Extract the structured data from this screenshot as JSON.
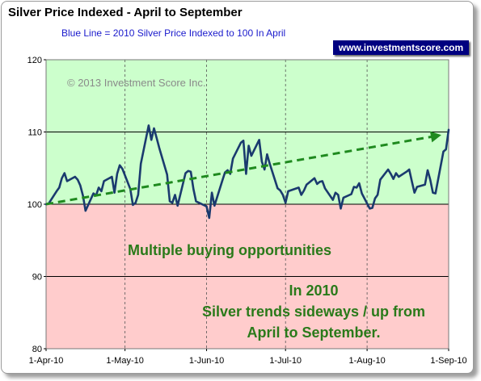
{
  "title": "Silver Price Indexed - April to September",
  "subtitle": "Blue Line =  2010 Silver Price Indexed to 100 In April",
  "brand_label": "www.investmentscore.com",
  "copyright": "© 2013 Investment Score Inc.",
  "annotations": {
    "buying": "Multiple buying opportunities",
    "trend_line1": "In 2010",
    "trend_line2": "Silver trends sideways / up from",
    "trend_line3": "April to September."
  },
  "colors": {
    "series": "#1a3a6e",
    "trend": "#1f8a1f",
    "upper_zone": "#ccffcc",
    "lower_zone": "#ffcccc",
    "annotation": "#2a7a1a",
    "brand_bg": "#000080"
  },
  "chart_data": {
    "type": "line",
    "title": "Silver Price Indexed - April to September",
    "xlabel": "",
    "ylabel": "",
    "ylim": [
      80,
      120
    ],
    "yticks": [
      "120",
      "110",
      "100",
      "90",
      "80"
    ],
    "xticks": [
      "1-Apr-10",
      "1-May-10",
      "1-Jun-10",
      "1-Jul-10",
      "1-Aug-10",
      "1-Sep-10"
    ],
    "xlim": [
      "2010-04-01",
      "2010-09-01"
    ],
    "grid": true,
    "baseline": 100,
    "series": [
      {
        "name": "2010 Silver Price Indexed to 100 In April",
        "x": [
          "2010-04-01",
          "2010-04-02",
          "2010-04-05",
          "2010-04-06",
          "2010-04-07",
          "2010-04-08",
          "2010-04-09",
          "2010-04-12",
          "2010-04-13",
          "2010-04-14",
          "2010-04-15",
          "2010-04-16",
          "2010-04-19",
          "2010-04-20",
          "2010-04-21",
          "2010-04-22",
          "2010-04-23",
          "2010-04-26",
          "2010-04-27",
          "2010-04-28",
          "2010-04-29",
          "2010-04-30",
          "2010-05-03",
          "2010-05-04",
          "2010-05-05",
          "2010-05-06",
          "2010-05-07",
          "2010-05-10",
          "2010-05-11",
          "2010-05-12",
          "2010-05-13",
          "2010-05-14",
          "2010-05-17",
          "2010-05-18",
          "2010-05-19",
          "2010-05-20",
          "2010-05-21",
          "2010-05-24",
          "2010-05-25",
          "2010-05-26",
          "2010-05-27",
          "2010-05-28",
          "2010-06-01",
          "2010-06-02",
          "2010-06-03",
          "2010-06-04",
          "2010-06-07",
          "2010-06-08",
          "2010-06-09",
          "2010-06-10",
          "2010-06-11",
          "2010-06-14",
          "2010-06-15",
          "2010-06-16",
          "2010-06-17",
          "2010-06-18",
          "2010-06-21",
          "2010-06-22",
          "2010-06-23",
          "2010-06-24",
          "2010-06-25",
          "2010-06-28",
          "2010-06-29",
          "2010-06-30",
          "2010-07-01",
          "2010-07-02",
          "2010-07-06",
          "2010-07-07",
          "2010-07-08",
          "2010-07-09",
          "2010-07-12",
          "2010-07-13",
          "2010-07-14",
          "2010-07-15",
          "2010-07-16",
          "2010-07-19",
          "2010-07-20",
          "2010-07-21",
          "2010-07-22",
          "2010-07-23",
          "2010-07-26",
          "2010-07-27",
          "2010-07-28",
          "2010-07-29",
          "2010-07-30",
          "2010-08-02",
          "2010-08-03",
          "2010-08-04",
          "2010-08-05",
          "2010-08-06",
          "2010-08-09",
          "2010-08-10",
          "2010-08-11",
          "2010-08-12",
          "2010-08-13",
          "2010-08-16",
          "2010-08-17",
          "2010-08-18",
          "2010-08-19",
          "2010-08-20",
          "2010-08-23",
          "2010-08-24",
          "2010-08-25",
          "2010-08-26",
          "2010-08-27",
          "2010-08-30",
          "2010-08-31",
          "2010-09-01"
        ],
        "values": [
          100,
          100.1,
          101.8,
          102.3,
          103.6,
          104.3,
          103.2,
          103.8,
          103.4,
          102.6,
          101.2,
          99.1,
          101.5,
          101.2,
          102.3,
          101.8,
          103.2,
          103.8,
          101.6,
          104.2,
          105.4,
          104.9,
          102.1,
          99.9,
          100.2,
          101.3,
          105.6,
          110.9,
          108.9,
          110.5,
          109.2,
          107.8,
          104.1,
          100.4,
          100.2,
          101.3,
          99.8,
          104.3,
          104.6,
          104.5,
          102.1,
          100.4,
          99.7,
          98.1,
          101.6,
          99.8,
          103.3,
          104.4,
          104.7,
          104.2,
          106.3,
          108.5,
          108.8,
          104.2,
          108.1,
          106.7,
          108.9,
          105.9,
          104.8,
          106.9,
          105.6,
          102.2,
          101.9,
          101.3,
          100.2,
          101.8,
          102.3,
          101.3,
          101.9,
          102.7,
          103.6,
          102.8,
          103.1,
          103.2,
          102.2,
          100.6,
          101.6,
          101.3,
          99.4,
          100.9,
          101.4,
          102.4,
          102.3,
          102.9,
          101.5,
          99.4,
          99.5,
          100.8,
          101.3,
          103.4,
          104.8,
          104.2,
          103.5,
          104.3,
          103.8,
          104.5,
          104.8,
          103.2,
          101.6,
          102.4,
          102.7,
          104.7,
          103.4,
          101.6,
          101.5,
          107.3,
          107.6,
          110.3
        ]
      }
    ],
    "trend_line": {
      "x": [
        "2010-04-01",
        "2010-08-28"
      ],
      "values": [
        100,
        109.5
      ]
    },
    "zones": [
      {
        "from": 100,
        "to": 120,
        "color": "#ccffcc"
      },
      {
        "from": 80,
        "to": 100,
        "color": "#ffcccc"
      }
    ]
  }
}
